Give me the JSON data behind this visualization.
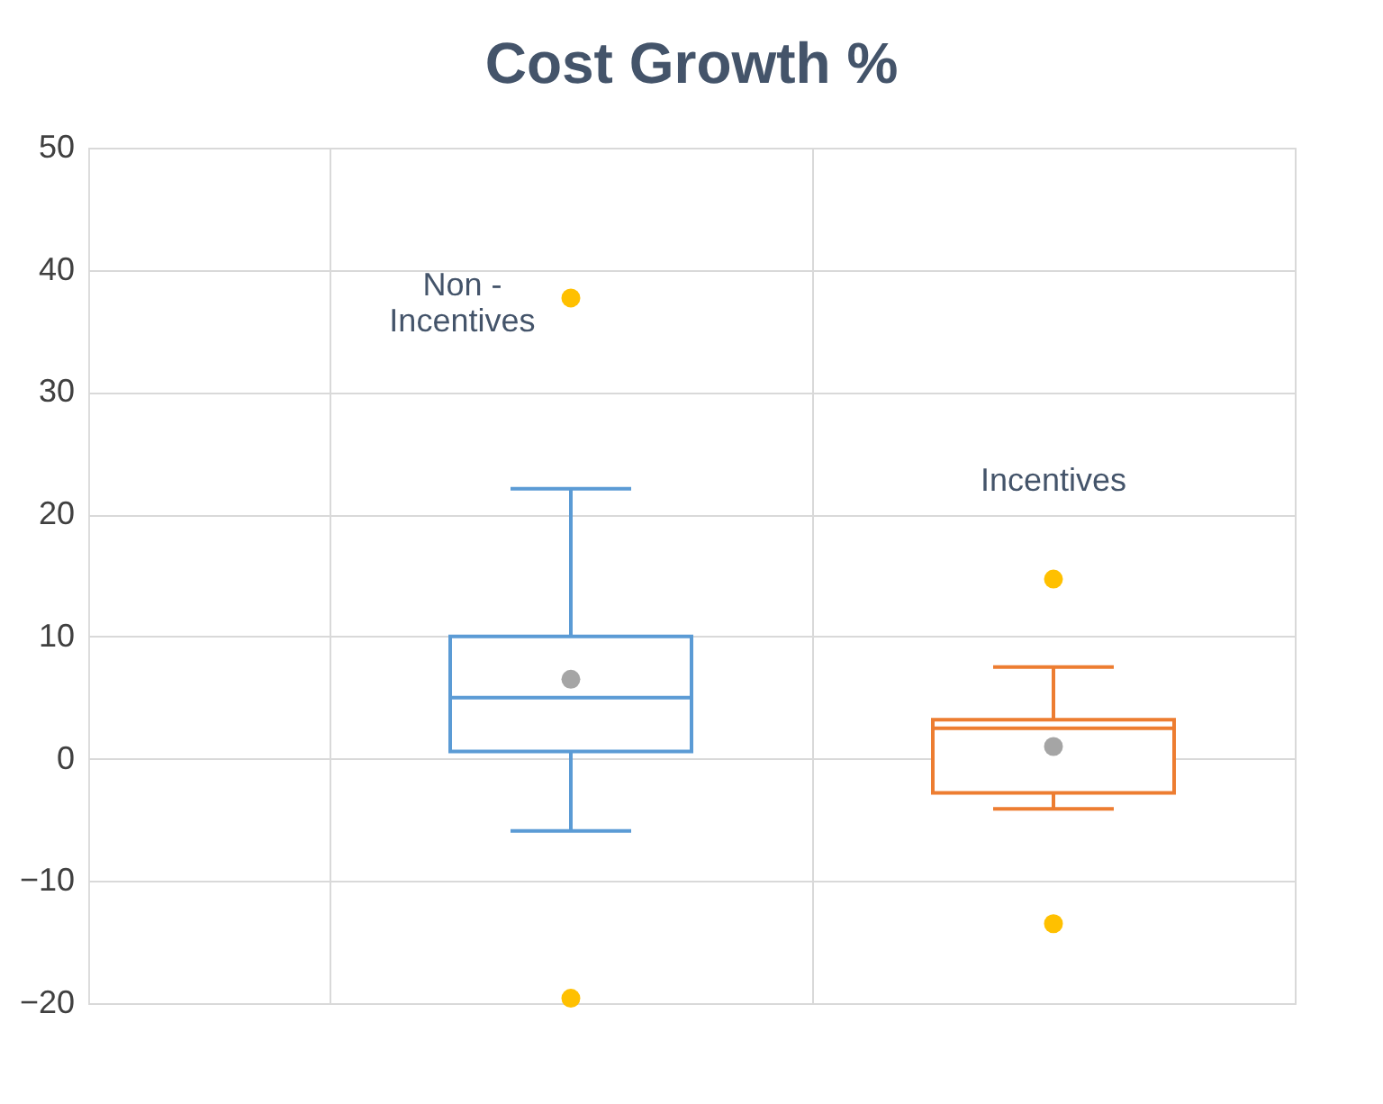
{
  "chart_data": {
    "type": "box",
    "title": "Cost Growth %",
    "categories": [
      "Non - Incentives",
      "Incentives"
    ],
    "ylim": [
      -20,
      50
    ],
    "yticks": [
      -20,
      -10,
      0,
      10,
      20,
      30,
      40,
      50
    ],
    "grid": true,
    "tick_labels": "y",
    "series": [
      {
        "colors": [
          "#5b9bd5",
          "#ed7d31"
        ],
        "boxes": [
          {
            "low": -5.9,
            "q1": 0.6,
            "median": 5.0,
            "q3": 10.0,
            "high": 22.1
          },
          {
            "low": -4.1,
            "q1": -2.8,
            "median": 2.5,
            "q3": 3.2,
            "high": 7.5
          }
        ]
      },
      {
        "type": "scatter",
        "x": [
          "Non - Incentives",
          "Incentives"
        ],
        "values": [
          6.5,
          1.0
        ],
        "color": "#a5a5a5"
      },
      {
        "type": "scatter",
        "x": [
          "Non - Incentives",
          "Non - Incentives",
          "Incentives",
          "Incentives"
        ],
        "values": [
          37.7,
          -19.6,
          14.7,
          -13.5
        ],
        "color": "#ffc000"
      }
    ]
  }
}
